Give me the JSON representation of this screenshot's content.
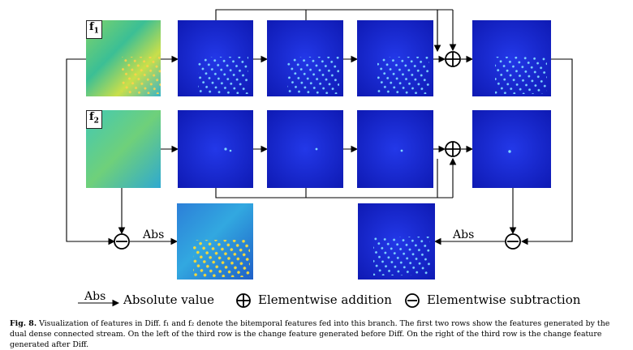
{
  "labels": {
    "f1_letter": "f",
    "f1_sub": "1",
    "f2_letter": "f",
    "f2_sub": "2",
    "abs_left": "Abs",
    "abs_right": "Abs"
  },
  "legend": {
    "abs_arrow_label": "Abs",
    "absolute_value": "Absolute value",
    "addition": "Elementwise addition",
    "subtraction": "Elementwise subtraction"
  },
  "caption": {
    "fig_label": "Fig. 8.",
    "text": "Visualization of features in Diff. f₁ and f₂ denote the bitemporal features fed into this branch. The first two rows show the features generated by the dual dense connected stream. On the left of the third row is the change feature generated before Diff. On the right of the third row is the change feature generated after Diff."
  },
  "colors": {
    "feature_blue": "#1a2bd6",
    "input_green": "#3fc57a",
    "highlight_yellow": "#f2d53a",
    "line": "#000000"
  }
}
